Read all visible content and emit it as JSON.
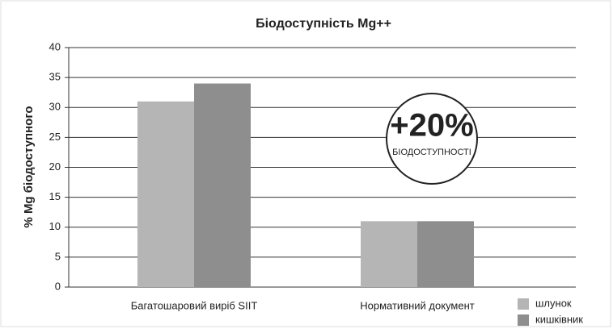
{
  "chart_data": {
    "type": "bar",
    "title": "Біодоступність Mg++",
    "y_label": "% Mg біодоступного",
    "categories": [
      "Багатошаровий виріб SIIT",
      "Нормативний документ"
    ],
    "series": [
      {
        "name": "шлунок",
        "color": "#b5b5b5",
        "values": [
          31,
          11
        ]
      },
      {
        "name": "кишківник",
        "color": "#8e8e8e",
        "values": [
          34,
          11
        ]
      }
    ],
    "annotations": [
      "+20%",
      "БІОДОСТУПНОСТІ"
    ],
    "ylim": [
      0,
      40
    ],
    "yticks": [
      0,
      5,
      10,
      15,
      20,
      25,
      30,
      35,
      40
    ],
    "grid": true,
    "legend": "bottom-right"
  }
}
